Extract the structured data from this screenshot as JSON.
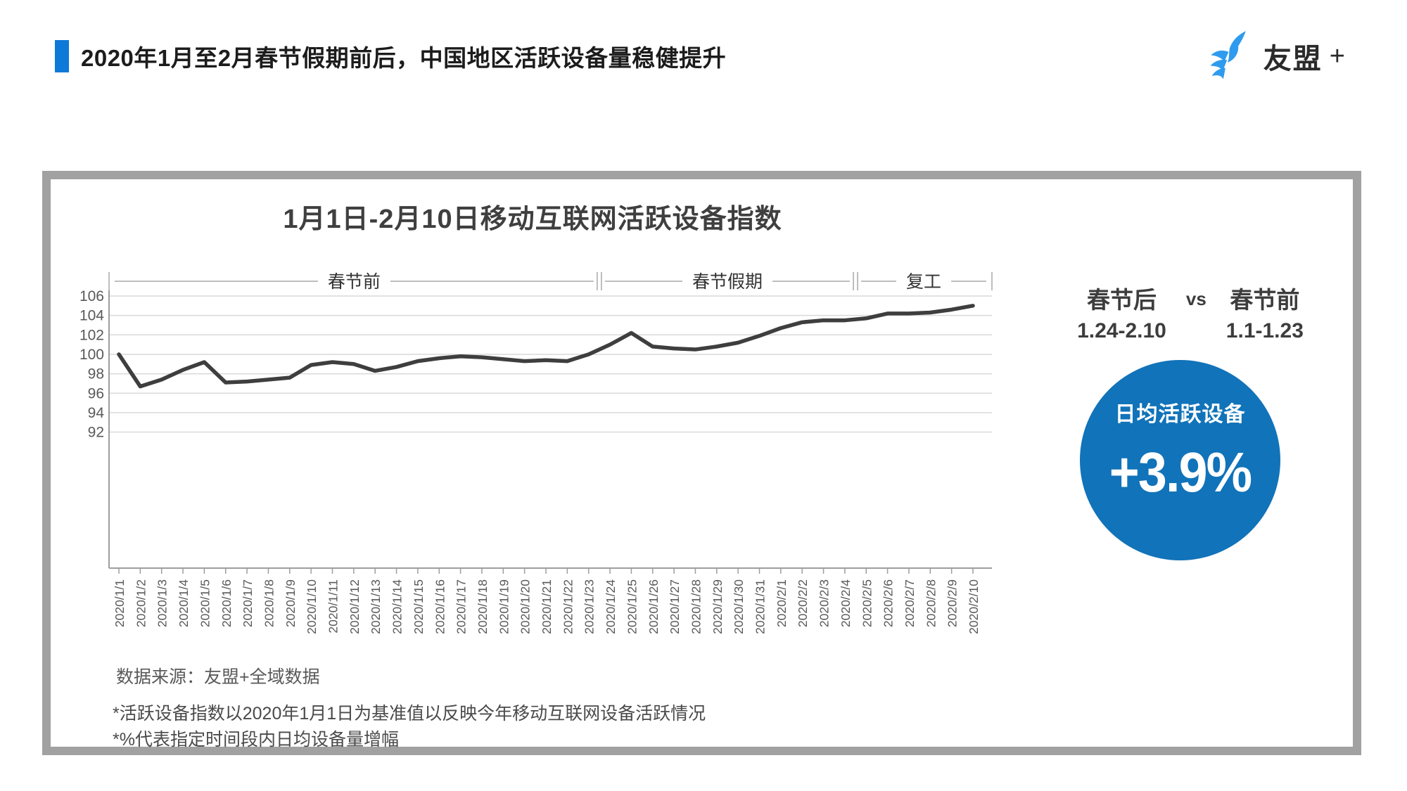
{
  "header": {
    "title": "2020年1月至2月春节假期前后，中国地区活跃设备量稳健提升",
    "accent_color": "#0d79d8",
    "logo_text": "友盟",
    "logo_plus": "+",
    "logo_color": "#2f9bee"
  },
  "chart_data": {
    "type": "line",
    "title": "1月1日-2月10日移动互联网活跃设备指数",
    "x": [
      "2020/1/1",
      "2020/1/2",
      "2020/1/3",
      "2020/1/4",
      "2020/1/5",
      "2020/1/6",
      "2020/1/7",
      "2020/1/8",
      "2020/1/9",
      "2020/1/10",
      "2020/1/11",
      "2020/1/12",
      "2020/1/13",
      "2020/1/14",
      "2020/1/15",
      "2020/1/16",
      "2020/1/17",
      "2020/1/18",
      "2020/1/19",
      "2020/1/20",
      "2020/1/21",
      "2020/1/22",
      "2020/1/23",
      "2020/1/24",
      "2020/1/25",
      "2020/1/26",
      "2020/1/27",
      "2020/1/28",
      "2020/1/29",
      "2020/1/30",
      "2020/1/31",
      "2020/2/1",
      "2020/2/2",
      "2020/2/3",
      "2020/2/4",
      "2020/2/5",
      "2020/2/6",
      "2020/2/7",
      "2020/2/8",
      "2020/2/9",
      "2020/2/10"
    ],
    "values": [
      100.0,
      96.7,
      97.4,
      98.4,
      99.2,
      97.1,
      97.2,
      97.4,
      97.6,
      98.9,
      99.2,
      99.0,
      98.3,
      98.7,
      99.3,
      99.6,
      99.8,
      99.7,
      99.5,
      99.3,
      99.4,
      99.3,
      100.0,
      101.0,
      102.2,
      100.8,
      100.6,
      100.5,
      100.8,
      101.2,
      101.9,
      102.7,
      103.3,
      103.5,
      103.5,
      103.7,
      104.2,
      104.2,
      104.3,
      104.6,
      105.0
    ],
    "ylim": [
      92,
      106
    ],
    "ytick_step": 2,
    "grid": true,
    "legend": "none",
    "periods": [
      {
        "label": "春节前",
        "from": "2020/1/1",
        "to": "2020/1/23"
      },
      {
        "label": "春节假期",
        "from": "2020/1/24",
        "to": "2020/2/4"
      },
      {
        "label": "复工",
        "from": "2020/2/5",
        "to": "2020/2/10"
      }
    ],
    "line_color": "#3e3e3e",
    "grid_color": "#d9d9d9",
    "axis_color": "#9e9e9e",
    "band_color": "#a8a8a8",
    "tick_label_color": "#595959",
    "band_label_color": "#333333"
  },
  "side_panel": {
    "after_label": "春节后",
    "after_range": "1.24-2.10",
    "vs": "vs",
    "before_label": "春节前",
    "before_range": "1.1-1.23",
    "badge_label": "日均活跃设备",
    "badge_value": "+3.9%",
    "badge_color": "#1173b9"
  },
  "footer": {
    "source": "数据来源：友盟+全域数据",
    "notes": [
      "*活跃设备指数以2020年1月1日为基准值以反映今年移动互联网设备活跃情况",
      "*%代表指定时间段内日均设备量增幅"
    ]
  }
}
